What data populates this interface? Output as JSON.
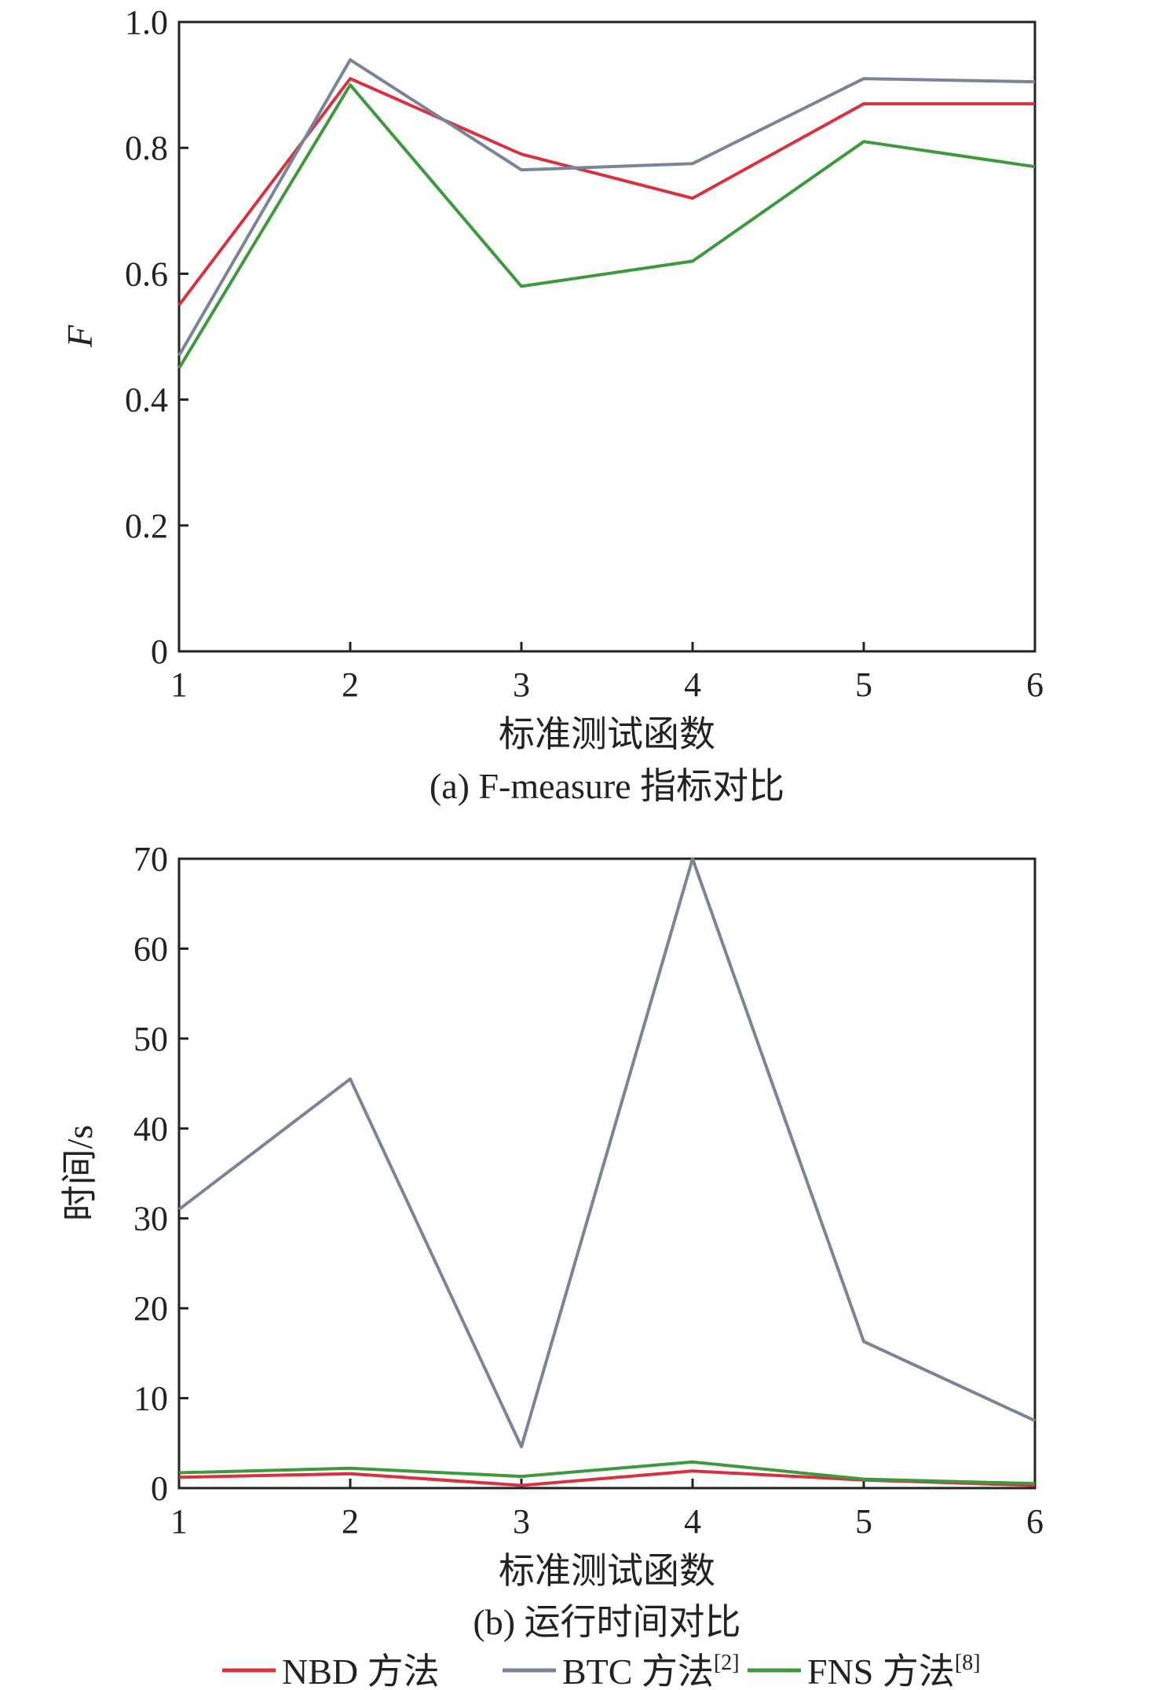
{
  "chart_data": [
    {
      "type": "line",
      "x": [
        1,
        2,
        3,
        4,
        5,
        6
      ],
      "xlabel": "标准测试函数",
      "ylabel": "F",
      "ylabel_italic": true,
      "caption": "(a) F-measure 指标对比",
      "xlim": [
        1,
        6
      ],
      "ylim": [
        0,
        1.0
      ],
      "yticks": [
        "0",
        "0.2",
        "0.4",
        "0.6",
        "0.8",
        "1.0"
      ],
      "ytick_values": [
        0,
        0.2,
        0.4,
        0.6,
        0.8,
        1.0
      ],
      "xticks": [
        "1",
        "2",
        "3",
        "4",
        "5",
        "6"
      ],
      "grid": false,
      "series": [
        {
          "name": "NBD 方法",
          "color": "#d9313e",
          "values": [
            0.55,
            0.91,
            0.79,
            0.72,
            0.87,
            0.87
          ]
        },
        {
          "name": "BTC 方法",
          "color": "#7a8499",
          "values": [
            0.47,
            0.94,
            0.765,
            0.775,
            0.91,
            0.905
          ]
        },
        {
          "name": "FNS 方法",
          "color": "#3c9a3c",
          "values": [
            0.45,
            0.9,
            0.58,
            0.62,
            0.81,
            0.77
          ]
        }
      ]
    },
    {
      "type": "line",
      "x": [
        1,
        2,
        3,
        4,
        5,
        6
      ],
      "xlabel": "标准测试函数",
      "ylabel": "时间/s",
      "ylabel_italic": false,
      "caption": "(b) 运行时间对比",
      "xlim": [
        1,
        6
      ],
      "ylim": [
        0,
        70
      ],
      "yticks": [
        "0",
        "10",
        "20",
        "30",
        "40",
        "50",
        "60",
        "70"
      ],
      "ytick_values": [
        0,
        10,
        20,
        30,
        40,
        50,
        60,
        70
      ],
      "xticks": [
        "1",
        "2",
        "3",
        "4",
        "5",
        "6"
      ],
      "grid": false,
      "series": [
        {
          "name": "NBD 方法",
          "color": "#d9313e",
          "values": [
            1.2,
            1.6,
            0.3,
            1.9,
            0.9,
            0.3
          ]
        },
        {
          "name": "BTC 方法",
          "color": "#7a8499",
          "values": [
            31,
            45.5,
            4.6,
            70,
            16.3,
            7.5
          ]
        },
        {
          "name": "FNS 方法",
          "color": "#3c9a3c",
          "values": [
            1.7,
            2.2,
            1.3,
            2.9,
            1.0,
            0.5
          ]
        }
      ]
    }
  ],
  "legend": {
    "placement": "bottom",
    "items": [
      {
        "label": "NBD 方法",
        "sup": "",
        "color": "#d9313e"
      },
      {
        "label": "BTC 方法",
        "sup": "[2]",
        "color": "#7a8499"
      },
      {
        "label": "FNS 方法",
        "sup": "[8]",
        "color": "#3c9a3c"
      }
    ]
  }
}
